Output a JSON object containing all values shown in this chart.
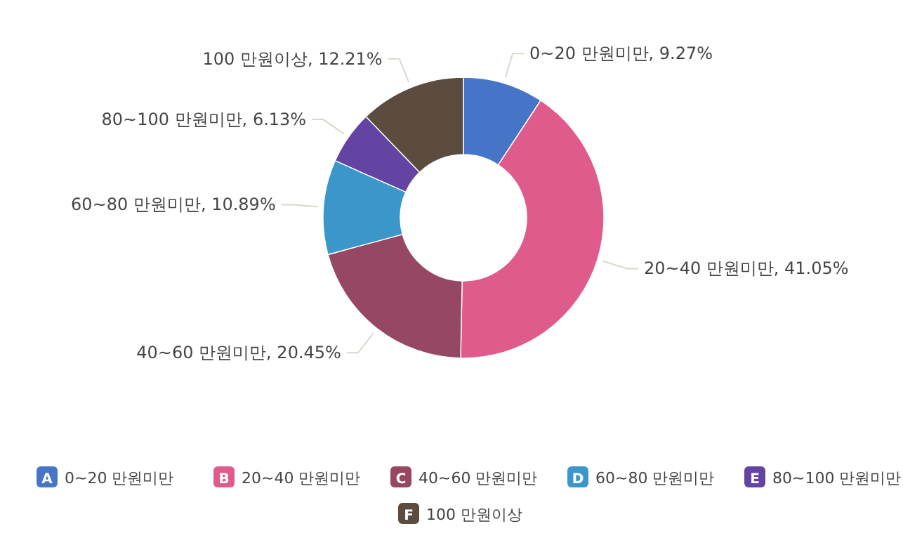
{
  "chart_data": {
    "type": "donut",
    "legend": "bottom",
    "categories": [
      "0~20 만원미만",
      "20~40 만원미만",
      "40~60 만원미만",
      "60~80 만원미만",
      "80~100 만원미만",
      "100 만원이상"
    ],
    "values": [
      9.27,
      41.05,
      20.45,
      10.89,
      6.13,
      12.21
    ],
    "value_labels": [
      "0~20 만원미만, 9.27%",
      "20~40 만원미만, 41.05%",
      "40~60 만원미만, 20.45%",
      "60~80 만원미만, 10.89%",
      "80~100 만원미만, 6.13%",
      "100 만원이상, 12.21%"
    ],
    "annotations": [
      "A",
      "B",
      "C",
      "D",
      "E",
      "F"
    ],
    "colors": [
      "#4675c8",
      "#df5b8c",
      "#964763",
      "#3b97ca",
      "#6344a3",
      "#5c4b3f"
    ]
  }
}
